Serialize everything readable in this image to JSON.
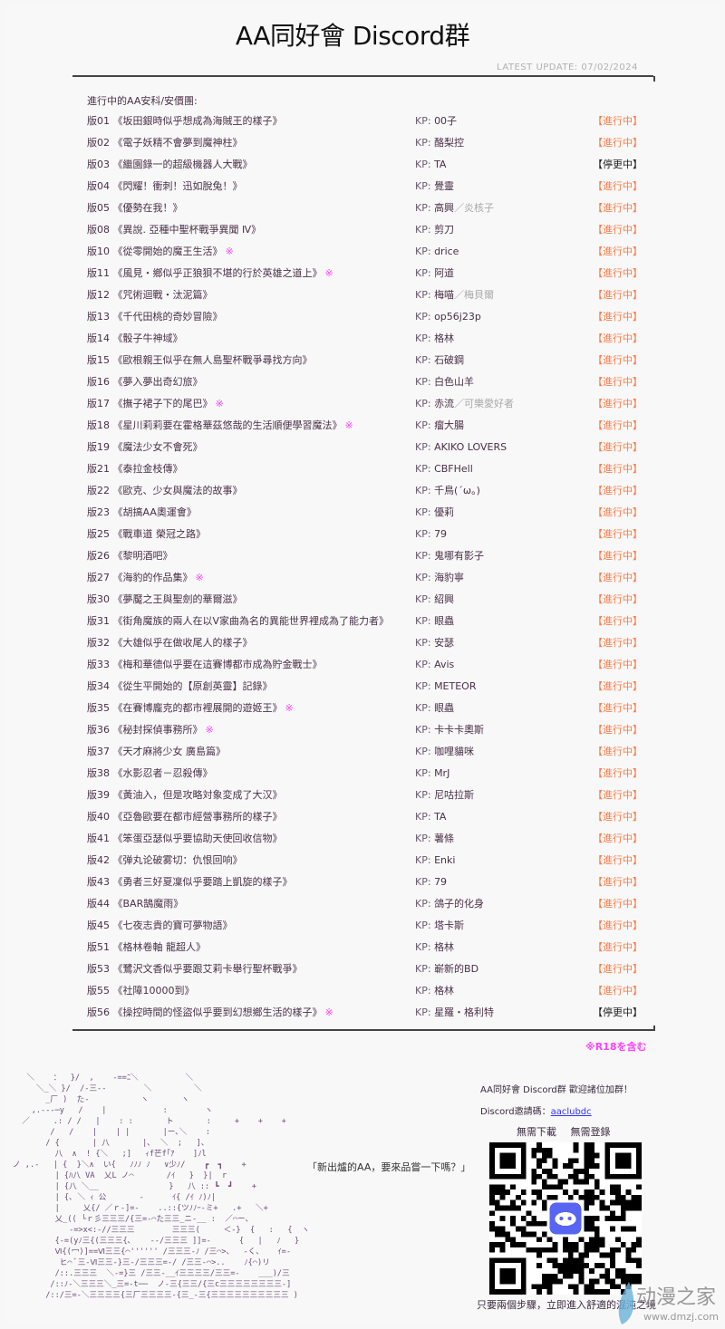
{
  "header": {
    "title": "AA同好會 Discord群",
    "latest_update": "LATEST UPDATE: 07/02/2024"
  },
  "list": {
    "heading": "進行中的AA安科/安價團:",
    "kp_label": "KP:",
    "status_colors": {
      "進行中": "#ff7a45",
      "停更中": "#222222"
    },
    "r18_mark": "※",
    "rows": [
      {
        "no": "版01",
        "title": "《坂田銀時似乎想成為海賊王的樣子》",
        "r18": false,
        "kp": "00子",
        "kp_alt": "",
        "status": "【進行中】"
      },
      {
        "no": "版02",
        "title": "《電子妖精不會夢到魔神柱》",
        "r18": false,
        "kp": "酪梨控",
        "kp_alt": "",
        "status": "【進行中】"
      },
      {
        "no": "版03",
        "title": "《繼園錄一的超級機器人大戰》",
        "r18": false,
        "kp": "TA",
        "kp_alt": "",
        "status": "【停更中】"
      },
      {
        "no": "版04",
        "title": "《閃耀！衝刺！迅如脫兔！》",
        "r18": false,
        "kp": "覺靈",
        "kp_alt": "",
        "status": "【進行中】"
      },
      {
        "no": "版05",
        "title": "《優勢在我！》",
        "r18": false,
        "kp": "高興",
        "kp_alt": "／炎核子",
        "status": "【進行中】"
      },
      {
        "no": "版08",
        "title": "《異說. 亞種中聖杯戰爭異聞 Ⅳ》",
        "r18": false,
        "kp": "剪刀",
        "kp_alt": "",
        "status": "【進行中】"
      },
      {
        "no": "版10",
        "title": "《從零開始的魔王生活》",
        "r18": true,
        "kp": "drice",
        "kp_alt": "",
        "status": "【進行中】"
      },
      {
        "no": "版11",
        "title": "《風見・鄉似乎正狼狽不堪的行於英雄之道上》",
        "r18": true,
        "kp": "阿道",
        "kp_alt": "",
        "status": "【進行中】"
      },
      {
        "no": "版12",
        "title": "《咒術迴戰・汰泥篇》",
        "r18": false,
        "kp": "梅喵",
        "kp_alt": "／梅貝爾",
        "status": "【進行中】"
      },
      {
        "no": "版13",
        "title": "《千代田桃的奇妙冒險》",
        "r18": false,
        "kp": "op56j23p",
        "kp_alt": "",
        "status": "【進行中】"
      },
      {
        "no": "版14",
        "title": "《骰子牛神域》",
        "r18": false,
        "kp": "格林",
        "kp_alt": "",
        "status": "【進行中】"
      },
      {
        "no": "版15",
        "title": "《歐根親王似乎在無人島聖杯戰爭尋找方向》",
        "r18": false,
        "kp": "石破鋼",
        "kp_alt": "",
        "status": "【進行中】"
      },
      {
        "no": "版16",
        "title": "《夢入夢出奇幻旅》",
        "r18": false,
        "kp": "白色山羊",
        "kp_alt": "",
        "status": "【進行中】"
      },
      {
        "no": "版17",
        "title": "《撫子裙子下的尾巴》",
        "r18": true,
        "kp": "赤流",
        "kp_alt": "／可樂愛好者",
        "status": "【進行中】"
      },
      {
        "no": "版18",
        "title": "《星川莉莉要在霍格華茲悠哉的生活順便學習魔法》",
        "r18": true,
        "kp": "瘤大腸",
        "kp_alt": "",
        "status": "【進行中】"
      },
      {
        "no": "版19",
        "title": "《魔法少女不會死》",
        "r18": false,
        "kp": "AKIKO LOVERS",
        "kp_alt": "",
        "status": "【進行中】"
      },
      {
        "no": "版21",
        "title": "《泰拉金枝傳》",
        "r18": false,
        "kp": "CBFHell",
        "kp_alt": "",
        "status": "【進行中】"
      },
      {
        "no": "版22",
        "title": "《歐克、少女與魔法的故事》",
        "r18": false,
        "kp": "千鳥(´ω。)",
        "kp_alt": "",
        "status": "【進行中】"
      },
      {
        "no": "版23",
        "title": "《胡搞AA奧運會》",
        "r18": false,
        "kp": "優莉",
        "kp_alt": "",
        "status": "【進行中】"
      },
      {
        "no": "版25",
        "title": "《戰車道 榮冠之路》",
        "r18": false,
        "kp": "79",
        "kp_alt": "",
        "status": "【進行中】"
      },
      {
        "no": "版26",
        "title": "《黎明酒吧》",
        "r18": false,
        "kp": "鬼哪有影子",
        "kp_alt": "",
        "status": "【進行中】"
      },
      {
        "no": "版27",
        "title": "《海豹的作品集》",
        "r18": true,
        "kp": "海豹寧",
        "kp_alt": "",
        "status": "【進行中】"
      },
      {
        "no": "版30",
        "title": "《夢魘之王與聖劍的華爾滋》",
        "r18": false,
        "kp": "紹興",
        "kp_alt": "",
        "status": "【進行中】"
      },
      {
        "no": "版31",
        "title": "《街角魔族的兩人在以V家曲為名的異能世界裡成為了能力者》",
        "r18": false,
        "kp": "眼蟲",
        "kp_alt": "",
        "status": "【進行中】"
      },
      {
        "no": "版32",
        "title": "《大雄似乎在做收尾人的樣子》",
        "r18": false,
        "kp": "安瑟",
        "kp_alt": "",
        "status": "【進行中】"
      },
      {
        "no": "版33",
        "title": "《梅和華德似乎要在這賽博都市成為貯金戰士》",
        "r18": false,
        "kp": "Avis",
        "kp_alt": "",
        "status": "【進行中】"
      },
      {
        "no": "版34",
        "title": "《從生平開始的【原創英靈】記錄》",
        "r18": false,
        "kp": "METEOR",
        "kp_alt": "",
        "status": "【進行中】"
      },
      {
        "no": "版35",
        "title": "《在賽博龐克的都市裡展開的遊姬王》",
        "r18": true,
        "kp": "眼蟲",
        "kp_alt": "",
        "status": "【進行中】"
      },
      {
        "no": "版36",
        "title": "《秘封探偵事務所》",
        "r18": true,
        "kp": "卡卡卡奧斯",
        "kp_alt": "",
        "status": "【進行中】"
      },
      {
        "no": "版37",
        "title": "《天才麻將少女 廣島篇》",
        "r18": false,
        "kp": "咖哩貓咪",
        "kp_alt": "",
        "status": "【進行中】"
      },
      {
        "no": "版38",
        "title": "《水影忍者－忍殺傳》",
        "r18": false,
        "kp": "MrJ",
        "kp_alt": "",
        "status": "【進行中】"
      },
      {
        "no": "版39",
        "title": "《黃油入，但是攻略対象変成了大汉》",
        "r18": false,
        "kp": "尼咕拉斯",
        "kp_alt": "",
        "status": "【進行中】"
      },
      {
        "no": "版40",
        "title": "《亞魯歐要在都市經營事務所的樣子》",
        "r18": false,
        "kp": "TA",
        "kp_alt": "",
        "status": "【進行中】"
      },
      {
        "no": "版41",
        "title": "《笨蛋亞瑟似乎要協助天使回收信物》",
        "r18": false,
        "kp": "薯條",
        "kp_alt": "",
        "status": "【進行中】"
      },
      {
        "no": "版42",
        "title": "《弹丸论破雾切：仇恨回响》",
        "r18": false,
        "kp": "Enki",
        "kp_alt": "",
        "status": "【進行中】"
      },
      {
        "no": "版43",
        "title": "《勇者三好夏凜似乎要踏上凱旋的樣子》",
        "r18": false,
        "kp": "79",
        "kp_alt": "",
        "status": "【進行中】"
      },
      {
        "no": "版44",
        "title": "《BAR鵠魔雨》",
        "r18": false,
        "kp": "鴿子的化身",
        "kp_alt": "",
        "status": "【進行中】"
      },
      {
        "no": "版45",
        "title": "《七夜志貴的寶可夢物語》",
        "r18": false,
        "kp": "塔卡斯",
        "kp_alt": "",
        "status": "【進行中】"
      },
      {
        "no": "版51",
        "title": "《格林卷軸 龍超人》",
        "r18": false,
        "kp": "格林",
        "kp_alt": "",
        "status": "【進行中】"
      },
      {
        "no": "版53",
        "title": "《鷺沢文香似乎要跟艾莉卡舉行聖杯戰爭》",
        "r18": false,
        "kp": "嶄新的BD",
        "kp_alt": "",
        "status": "【進行中】"
      },
      {
        "no": "版55",
        "title": "《社障10000到》",
        "r18": false,
        "kp": "格林",
        "kp_alt": "",
        "status": "【進行中】"
      },
      {
        "no": "版56",
        "title": "《操控時間的怪盜似乎要到幻想鄉生活的樣子》",
        "r18": true,
        "kp": "星羅・格利特",
        "kp_alt": "",
        "status": "【停更中】"
      }
    ],
    "r18_note": "※R18を含む"
  },
  "footer": {
    "art_lines": [
      "   ＼    ：  }/  ,    -==ﾆ＼          ＼",
      "     ＼_＼ }/  /-三--        ＼         ＼",
      "       _厂 )  た-           ヽ       ヽ",
      "    ,.--‐─y   /    |            :        ヽ",
      "  ／     .: / /   |    : :       ト       :     +    +    +",
      "        /   /    |    | |       |ー､＼    :",
      "       / {       | 八       |､  ＼  ;   ]、",
      "         八  ∧  ! {＼   ;]   ｨf芒f｢ｱ    ]ﾉl",
      "ノ ,.-   | {  }＼∧  い{   ﾉﾉﾉ ﾉ   ∨少ﾉ/    ┏  ┓    +",
      "         | {ﾊ八 VA  乂L ノ⌒       /ｲ   }  }|  r",
      "         | {八 ＼__               }   八 :: ┗  ┛    +",
      "         | {､ ＼ ｨ 公       -      ｲ{ /ｲ ﾉ)ﾉ|",
      "         |     乂{/ ／ｒ-]=-    ..::{ツﾉﾉｰ-ミ+   .+   ＼+",
      "         乂_(( └ｒ彡三三三/{三=-⌒た三三_ニ-__ :  ／⌒ー､",
      "            -=>x<:-//三三三        三三三(     ＜-}  {   :   {  ヽ",
      "         {-=(yﾉ三{(三三三{､    --/三三三 ]]=-      {   |   ﾉ   }",
      "         Ⅵ{(冖)]==Ⅵ三三{⌒'''''' /三三三-ﾉ /三⌒>、  -く、   ｲ=-",
      "          ヒ⌒ ﾞ三-Ⅵ三三-}三-/三三三=-/ /三三-⌒>..    ﾉ{⌒)リ",
      "         /::.三三三  ＼-=}三 /三三-__ｲ三三三三/三三=-    ___)/三",
      "        /::ﾉ-＼三三三＼_三=-t──  ノ-三{三三/{三c三三三三三三三三-]",
      "       /::/三=-＼三三三三{三厂三三三三-{三_-三{三三三三三三三三三三 )"
    ],
    "speech": "「新出爐的AA，要來品嘗一下嗎？」",
    "invite_title": "AA同好會 Discord群  歡迎諸位加群！",
    "invite_label": "Discord邀請碼：",
    "invite_code": "aaclubdc",
    "no_download": "無需下載",
    "no_login": "無需登錄",
    "steps": "只要兩個步驟，立即進入舒適的混沌之境",
    "discord_color": "#5865f2",
    "watermark_text": "动漫之家",
    "watermark_url": "www.dmzj.com"
  }
}
